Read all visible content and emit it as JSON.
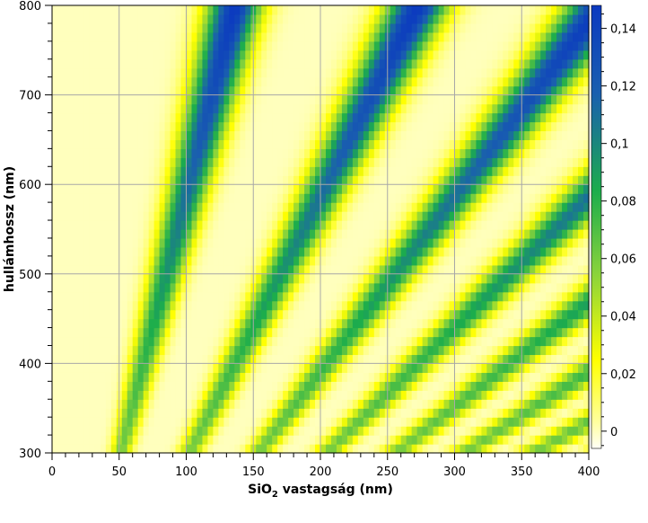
{
  "chart_data": {
    "type": "heatmap",
    "title": "",
    "xlabel": {
      "pre": "SiO",
      "sub": "2",
      "post": " vastagság (nm)"
    },
    "ylabel": "hullámhossz (nm)",
    "xlim": [
      0,
      400
    ],
    "ylim": [
      300,
      800
    ],
    "x_ticks": [
      0,
      50,
      100,
      150,
      200,
      250,
      300,
      350,
      400
    ],
    "x_tick_labels": [
      "0",
      "50",
      "100",
      "150",
      "200",
      "250",
      "300",
      "350",
      "400"
    ],
    "y_ticks": [
      300,
      400,
      500,
      600,
      700,
      800
    ],
    "y_tick_labels": [
      "300",
      "400",
      "500",
      "600",
      "700",
      "800"
    ],
    "grid": true,
    "colorbar": {
      "range": [
        -0.006,
        0.148
      ],
      "ticks": [
        0,
        0.02,
        0.04,
        0.06,
        0.08,
        0.1,
        0.12,
        0.14
      ],
      "tick_labels": [
        "0",
        "0,02",
        "0,04",
        "0,06",
        "0,08",
        "0,1",
        "0,12",
        "0,14"
      ],
      "colors": [
        "#fffff7",
        "#ffff9e",
        "#ffff00",
        "#86d23c",
        "#1cad4c",
        "#1a5faf",
        "#0b39c0"
      ],
      "stops": [
        0,
        0.06,
        0.2,
        0.4,
        0.58,
        0.8,
        1
      ]
    },
    "data_description": {
      "z": "reflectance difference, peaks along thin-film interference ridges",
      "ridge_rule": "x = m * wavelength / 5.86, m = 1..4",
      "peak_value_range": [
        0.06,
        0.148
      ]
    }
  }
}
